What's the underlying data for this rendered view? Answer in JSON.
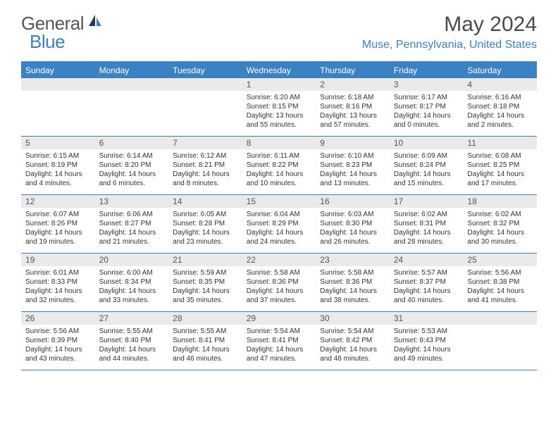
{
  "brand": {
    "part1": "General",
    "part2": "Blue"
  },
  "title": "May 2024",
  "location": "Muse, Pennsylvania, United States",
  "colors": {
    "accent": "#3b82c4",
    "daynum_bg": "#eaeaea",
    "text": "#333333",
    "title_text": "#4a4a4a"
  },
  "weekdays": [
    "Sunday",
    "Monday",
    "Tuesday",
    "Wednesday",
    "Thursday",
    "Friday",
    "Saturday"
  ],
  "weeks": [
    [
      null,
      null,
      null,
      {
        "n": "1",
        "sr": "6:20 AM",
        "ss": "8:15 PM",
        "dl": "13 hours and 55 minutes."
      },
      {
        "n": "2",
        "sr": "6:18 AM",
        "ss": "8:16 PM",
        "dl": "13 hours and 57 minutes."
      },
      {
        "n": "3",
        "sr": "6:17 AM",
        "ss": "8:17 PM",
        "dl": "14 hours and 0 minutes."
      },
      {
        "n": "4",
        "sr": "6:16 AM",
        "ss": "8:18 PM",
        "dl": "14 hours and 2 minutes."
      }
    ],
    [
      {
        "n": "5",
        "sr": "6:15 AM",
        "ss": "8:19 PM",
        "dl": "14 hours and 4 minutes."
      },
      {
        "n": "6",
        "sr": "6:14 AM",
        "ss": "8:20 PM",
        "dl": "14 hours and 6 minutes."
      },
      {
        "n": "7",
        "sr": "6:12 AM",
        "ss": "8:21 PM",
        "dl": "14 hours and 8 minutes."
      },
      {
        "n": "8",
        "sr": "6:11 AM",
        "ss": "8:22 PM",
        "dl": "14 hours and 10 minutes."
      },
      {
        "n": "9",
        "sr": "6:10 AM",
        "ss": "8:23 PM",
        "dl": "14 hours and 13 minutes."
      },
      {
        "n": "10",
        "sr": "6:09 AM",
        "ss": "8:24 PM",
        "dl": "14 hours and 15 minutes."
      },
      {
        "n": "11",
        "sr": "6:08 AM",
        "ss": "8:25 PM",
        "dl": "14 hours and 17 minutes."
      }
    ],
    [
      {
        "n": "12",
        "sr": "6:07 AM",
        "ss": "8:26 PM",
        "dl": "14 hours and 19 minutes."
      },
      {
        "n": "13",
        "sr": "6:06 AM",
        "ss": "8:27 PM",
        "dl": "14 hours and 21 minutes."
      },
      {
        "n": "14",
        "sr": "6:05 AM",
        "ss": "8:28 PM",
        "dl": "14 hours and 23 minutes."
      },
      {
        "n": "15",
        "sr": "6:04 AM",
        "ss": "8:29 PM",
        "dl": "14 hours and 24 minutes."
      },
      {
        "n": "16",
        "sr": "6:03 AM",
        "ss": "8:30 PM",
        "dl": "14 hours and 26 minutes."
      },
      {
        "n": "17",
        "sr": "6:02 AM",
        "ss": "8:31 PM",
        "dl": "14 hours and 28 minutes."
      },
      {
        "n": "18",
        "sr": "6:02 AM",
        "ss": "8:32 PM",
        "dl": "14 hours and 30 minutes."
      }
    ],
    [
      {
        "n": "19",
        "sr": "6:01 AM",
        "ss": "8:33 PM",
        "dl": "14 hours and 32 minutes."
      },
      {
        "n": "20",
        "sr": "6:00 AM",
        "ss": "8:34 PM",
        "dl": "14 hours and 33 minutes."
      },
      {
        "n": "21",
        "sr": "5:59 AM",
        "ss": "8:35 PM",
        "dl": "14 hours and 35 minutes."
      },
      {
        "n": "22",
        "sr": "5:58 AM",
        "ss": "8:36 PM",
        "dl": "14 hours and 37 minutes."
      },
      {
        "n": "23",
        "sr": "5:58 AM",
        "ss": "8:36 PM",
        "dl": "14 hours and 38 minutes."
      },
      {
        "n": "24",
        "sr": "5:57 AM",
        "ss": "8:37 PM",
        "dl": "14 hours and 40 minutes."
      },
      {
        "n": "25",
        "sr": "5:56 AM",
        "ss": "8:38 PM",
        "dl": "14 hours and 41 minutes."
      }
    ],
    [
      {
        "n": "26",
        "sr": "5:56 AM",
        "ss": "8:39 PM",
        "dl": "14 hours and 43 minutes."
      },
      {
        "n": "27",
        "sr": "5:55 AM",
        "ss": "8:40 PM",
        "dl": "14 hours and 44 minutes."
      },
      {
        "n": "28",
        "sr": "5:55 AM",
        "ss": "8:41 PM",
        "dl": "14 hours and 46 minutes."
      },
      {
        "n": "29",
        "sr": "5:54 AM",
        "ss": "8:41 PM",
        "dl": "14 hours and 47 minutes."
      },
      {
        "n": "30",
        "sr": "5:54 AM",
        "ss": "8:42 PM",
        "dl": "14 hours and 48 minutes."
      },
      {
        "n": "31",
        "sr": "5:53 AM",
        "ss": "8:43 PM",
        "dl": "14 hours and 49 minutes."
      },
      null
    ]
  ],
  "labels": {
    "sunrise": "Sunrise:",
    "sunset": "Sunset:",
    "daylight": "Daylight:"
  }
}
